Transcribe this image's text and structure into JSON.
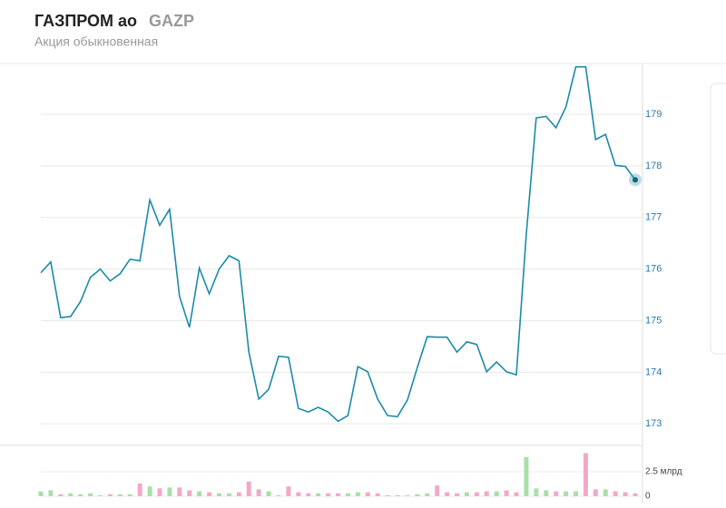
{
  "header": {
    "title": "ГАЗПРОМ ао",
    "ticker": "GAZP",
    "subtitle": "Акция обыкновенная"
  },
  "chart_data": [
    {
      "type": "line",
      "color": "#1b8ba8",
      "values": [
        175.93,
        176.14,
        175.06,
        175.08,
        175.37,
        175.84,
        176.0,
        175.77,
        175.91,
        176.19,
        176.16,
        177.34,
        176.85,
        177.16,
        175.47,
        174.87,
        176.02,
        175.52,
        176.0,
        176.26,
        176.16,
        174.39,
        173.48,
        173.67,
        174.31,
        174.29,
        173.3,
        173.23,
        173.32,
        173.23,
        173.05,
        173.16,
        174.11,
        174.01,
        173.48,
        173.16,
        173.14,
        173.46,
        174.09,
        174.69,
        174.68,
        174.68,
        174.39,
        174.59,
        174.54,
        174.01,
        174.2,
        174.01,
        173.95,
        176.67,
        178.93,
        178.96,
        178.74,
        179.14,
        179.92,
        179.92,
        178.51,
        178.61,
        178.01,
        177.99,
        177.73
      ],
      "ylim": [
        172.6,
        179.95
      ],
      "yticks": [
        173,
        174,
        175,
        176,
        177,
        178,
        179
      ],
      "grid": true
    },
    {
      "type": "bar",
      "up_color": "#a8e0a8",
      "down_color": "#f4a8c8",
      "values": [
        0.5,
        0.6,
        0.2,
        0.3,
        0.2,
        0.3,
        0.1,
        0.2,
        0.2,
        0.2,
        1.3,
        1.0,
        0.8,
        0.9,
        0.9,
        0.6,
        0.5,
        0.4,
        0.3,
        0.3,
        0.4,
        1.5,
        0.7,
        0.5,
        0.1,
        1.0,
        0.4,
        0.3,
        0.3,
        0.3,
        0.3,
        0.3,
        0.4,
        0.4,
        0.3,
        0.1,
        0.1,
        0.1,
        0.2,
        0.3,
        1.1,
        0.4,
        0.3,
        0.4,
        0.4,
        0.5,
        0.5,
        0.6,
        0.4,
        4.0,
        0.8,
        0.6,
        0.5,
        0.5,
        0.5,
        4.4,
        0.7,
        0.7,
        0.5,
        0.4,
        0.3
      ],
      "ylim": [
        0,
        5.1
      ],
      "yticks": [
        0,
        {
          "value": 2.5,
          "label": "2.5 млрд"
        }
      ]
    }
  ]
}
